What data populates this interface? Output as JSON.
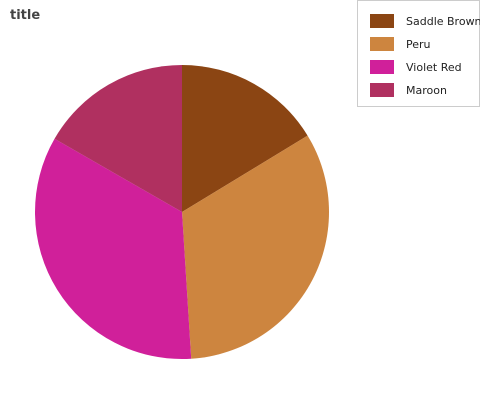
{
  "chart_data": {
    "type": "pie",
    "title": "title",
    "legend_position": "top-right",
    "slices": [
      {
        "name": "Saddle Brown",
        "value": 16.3,
        "color": "#8B4513"
      },
      {
        "name": "Peru",
        "value": 32.7,
        "color": "#CD853F"
      },
      {
        "name": "Violet Red",
        "value": 34.3,
        "color": "#D0209A"
      },
      {
        "name": "Maroon",
        "value": 16.7,
        "color": "#B03060"
      }
    ],
    "legend": [
      {
        "label": "Saddle Brown",
        "color": "#8B4513"
      },
      {
        "label": "Peru",
        "color": "#CD853F"
      },
      {
        "label": "Violet Red",
        "color": "#D0209A"
      },
      {
        "label": "Maroon",
        "color": "#B03060"
      }
    ]
  }
}
